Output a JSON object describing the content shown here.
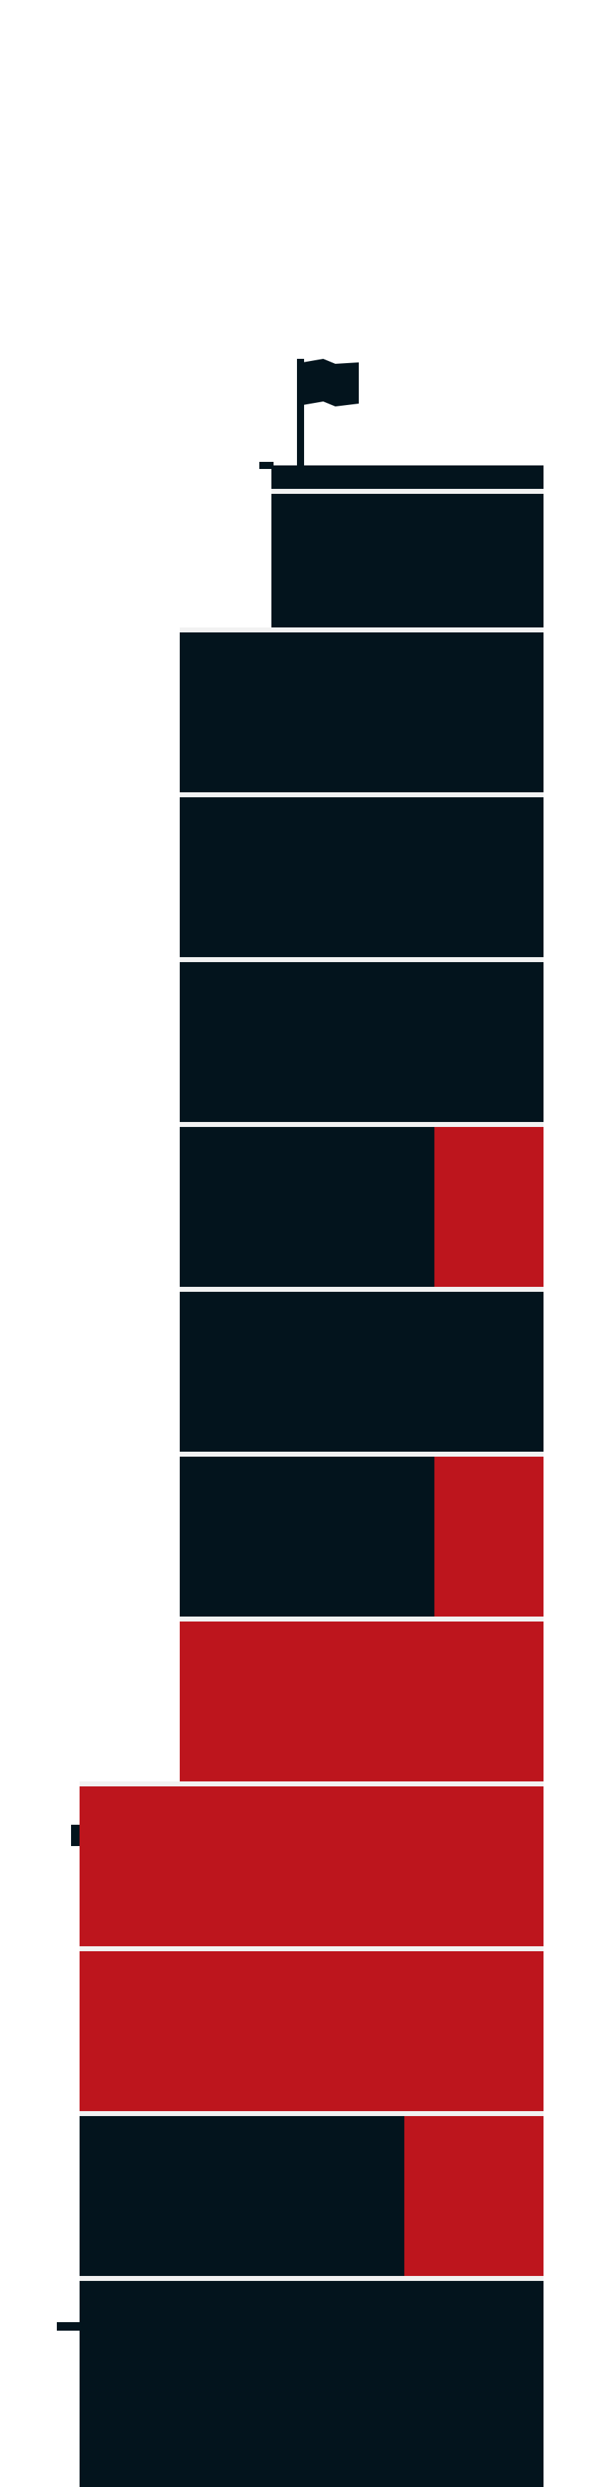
{
  "colors": {
    "background": "#ffffff",
    "dark": "#03141d",
    "red": "#bd151d",
    "divider": "#f2f2f2"
  },
  "icons": {
    "flag": "flag-icon"
  },
  "floors": [
    {
      "name": "floor-1",
      "red_fraction": 0
    },
    {
      "name": "floor-2",
      "red_fraction": 0
    },
    {
      "name": "floor-3",
      "red_fraction": 0
    },
    {
      "name": "floor-4",
      "red_fraction": 0
    },
    {
      "name": "floor-5",
      "red_fraction": 0.3
    },
    {
      "name": "floor-6",
      "red_fraction": 0
    },
    {
      "name": "floor-7",
      "red_fraction": 0.3
    },
    {
      "name": "floor-8",
      "red_fraction": 1
    },
    {
      "name": "floor-9",
      "red_fraction": 1
    },
    {
      "name": "floor-10",
      "red_fraction": 1
    },
    {
      "name": "floor-11",
      "red_fraction": 0.3
    },
    {
      "name": "floor-12",
      "red_fraction": 0
    }
  ]
}
